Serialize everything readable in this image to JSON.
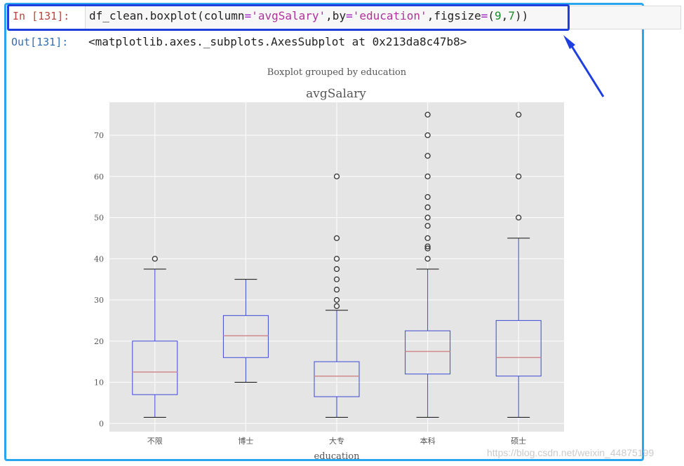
{
  "cell": {
    "input_prompt": "In [131]:",
    "output_prompt": "Out[131]:",
    "code_tokens": [
      {
        "text": "df_clean.boxplot(column",
        "cls": ""
      },
      {
        "text": "=",
        "cls": "tk-op"
      },
      {
        "text": "'avgSalary'",
        "cls": "tk-str"
      },
      {
        "text": ",by",
        "cls": ""
      },
      {
        "text": "=",
        "cls": "tk-op"
      },
      {
        "text": "'education'",
        "cls": "tk-str"
      },
      {
        "text": ",figsize",
        "cls": ""
      },
      {
        "text": "=",
        "cls": "tk-op"
      },
      {
        "text": "(",
        "cls": ""
      },
      {
        "text": "9",
        "cls": "tk-num"
      },
      {
        "text": ",",
        "cls": ""
      },
      {
        "text": "7",
        "cls": "tk-num"
      },
      {
        "text": "))",
        "cls": ""
      }
    ],
    "output_text": "<matplotlib.axes._subplots.AxesSubplot at 0x213da8c47b8>"
  },
  "colors": {
    "cell_border": "#29a6ee",
    "highlight_border": "#1f3ee0",
    "arrow": "#1f3ee0",
    "box": "#3b48d6",
    "median": "#d08a8e",
    "axes_bg": "#e5e5e5"
  },
  "watermark": "https://blog.csdn.net/weixin_44875199",
  "chart_data": {
    "type": "boxplot",
    "suptitle": "Boxplot grouped by education",
    "title": "avgSalary",
    "xlabel": "education",
    "ylabel": "",
    "ylim": [
      -2,
      78
    ],
    "yticks": [
      0,
      10,
      20,
      30,
      40,
      50,
      60,
      70
    ],
    "grid": true,
    "categories": [
      "不限",
      "博士",
      "大专",
      "本科",
      "硕士"
    ],
    "boxes": [
      {
        "whisker_low": 1.5,
        "q1": 7,
        "median": 12.5,
        "q3": 20,
        "whisker_high": 37.5,
        "outliers": [
          40
        ]
      },
      {
        "whisker_low": 10,
        "q1": 16,
        "median": 21.3,
        "q3": 26.2,
        "whisker_high": 35,
        "outliers": []
      },
      {
        "whisker_low": 1.5,
        "q1": 6.5,
        "median": 11.5,
        "q3": 15,
        "whisker_high": 27.5,
        "outliers": [
          28.5,
          30,
          32.5,
          35,
          37.5,
          40,
          45,
          60
        ]
      },
      {
        "whisker_low": 1.5,
        "q1": 12,
        "median": 17.5,
        "q3": 22.5,
        "whisker_high": 37.5,
        "outliers": [
          40,
          42.5,
          43,
          45,
          48,
          50,
          52.5,
          55,
          60,
          65,
          70,
          75
        ]
      },
      {
        "whisker_low": 1.5,
        "q1": 11.5,
        "median": 16,
        "q3": 25,
        "whisker_high": 45,
        "outliers": [
          50,
          60,
          75
        ]
      }
    ]
  }
}
